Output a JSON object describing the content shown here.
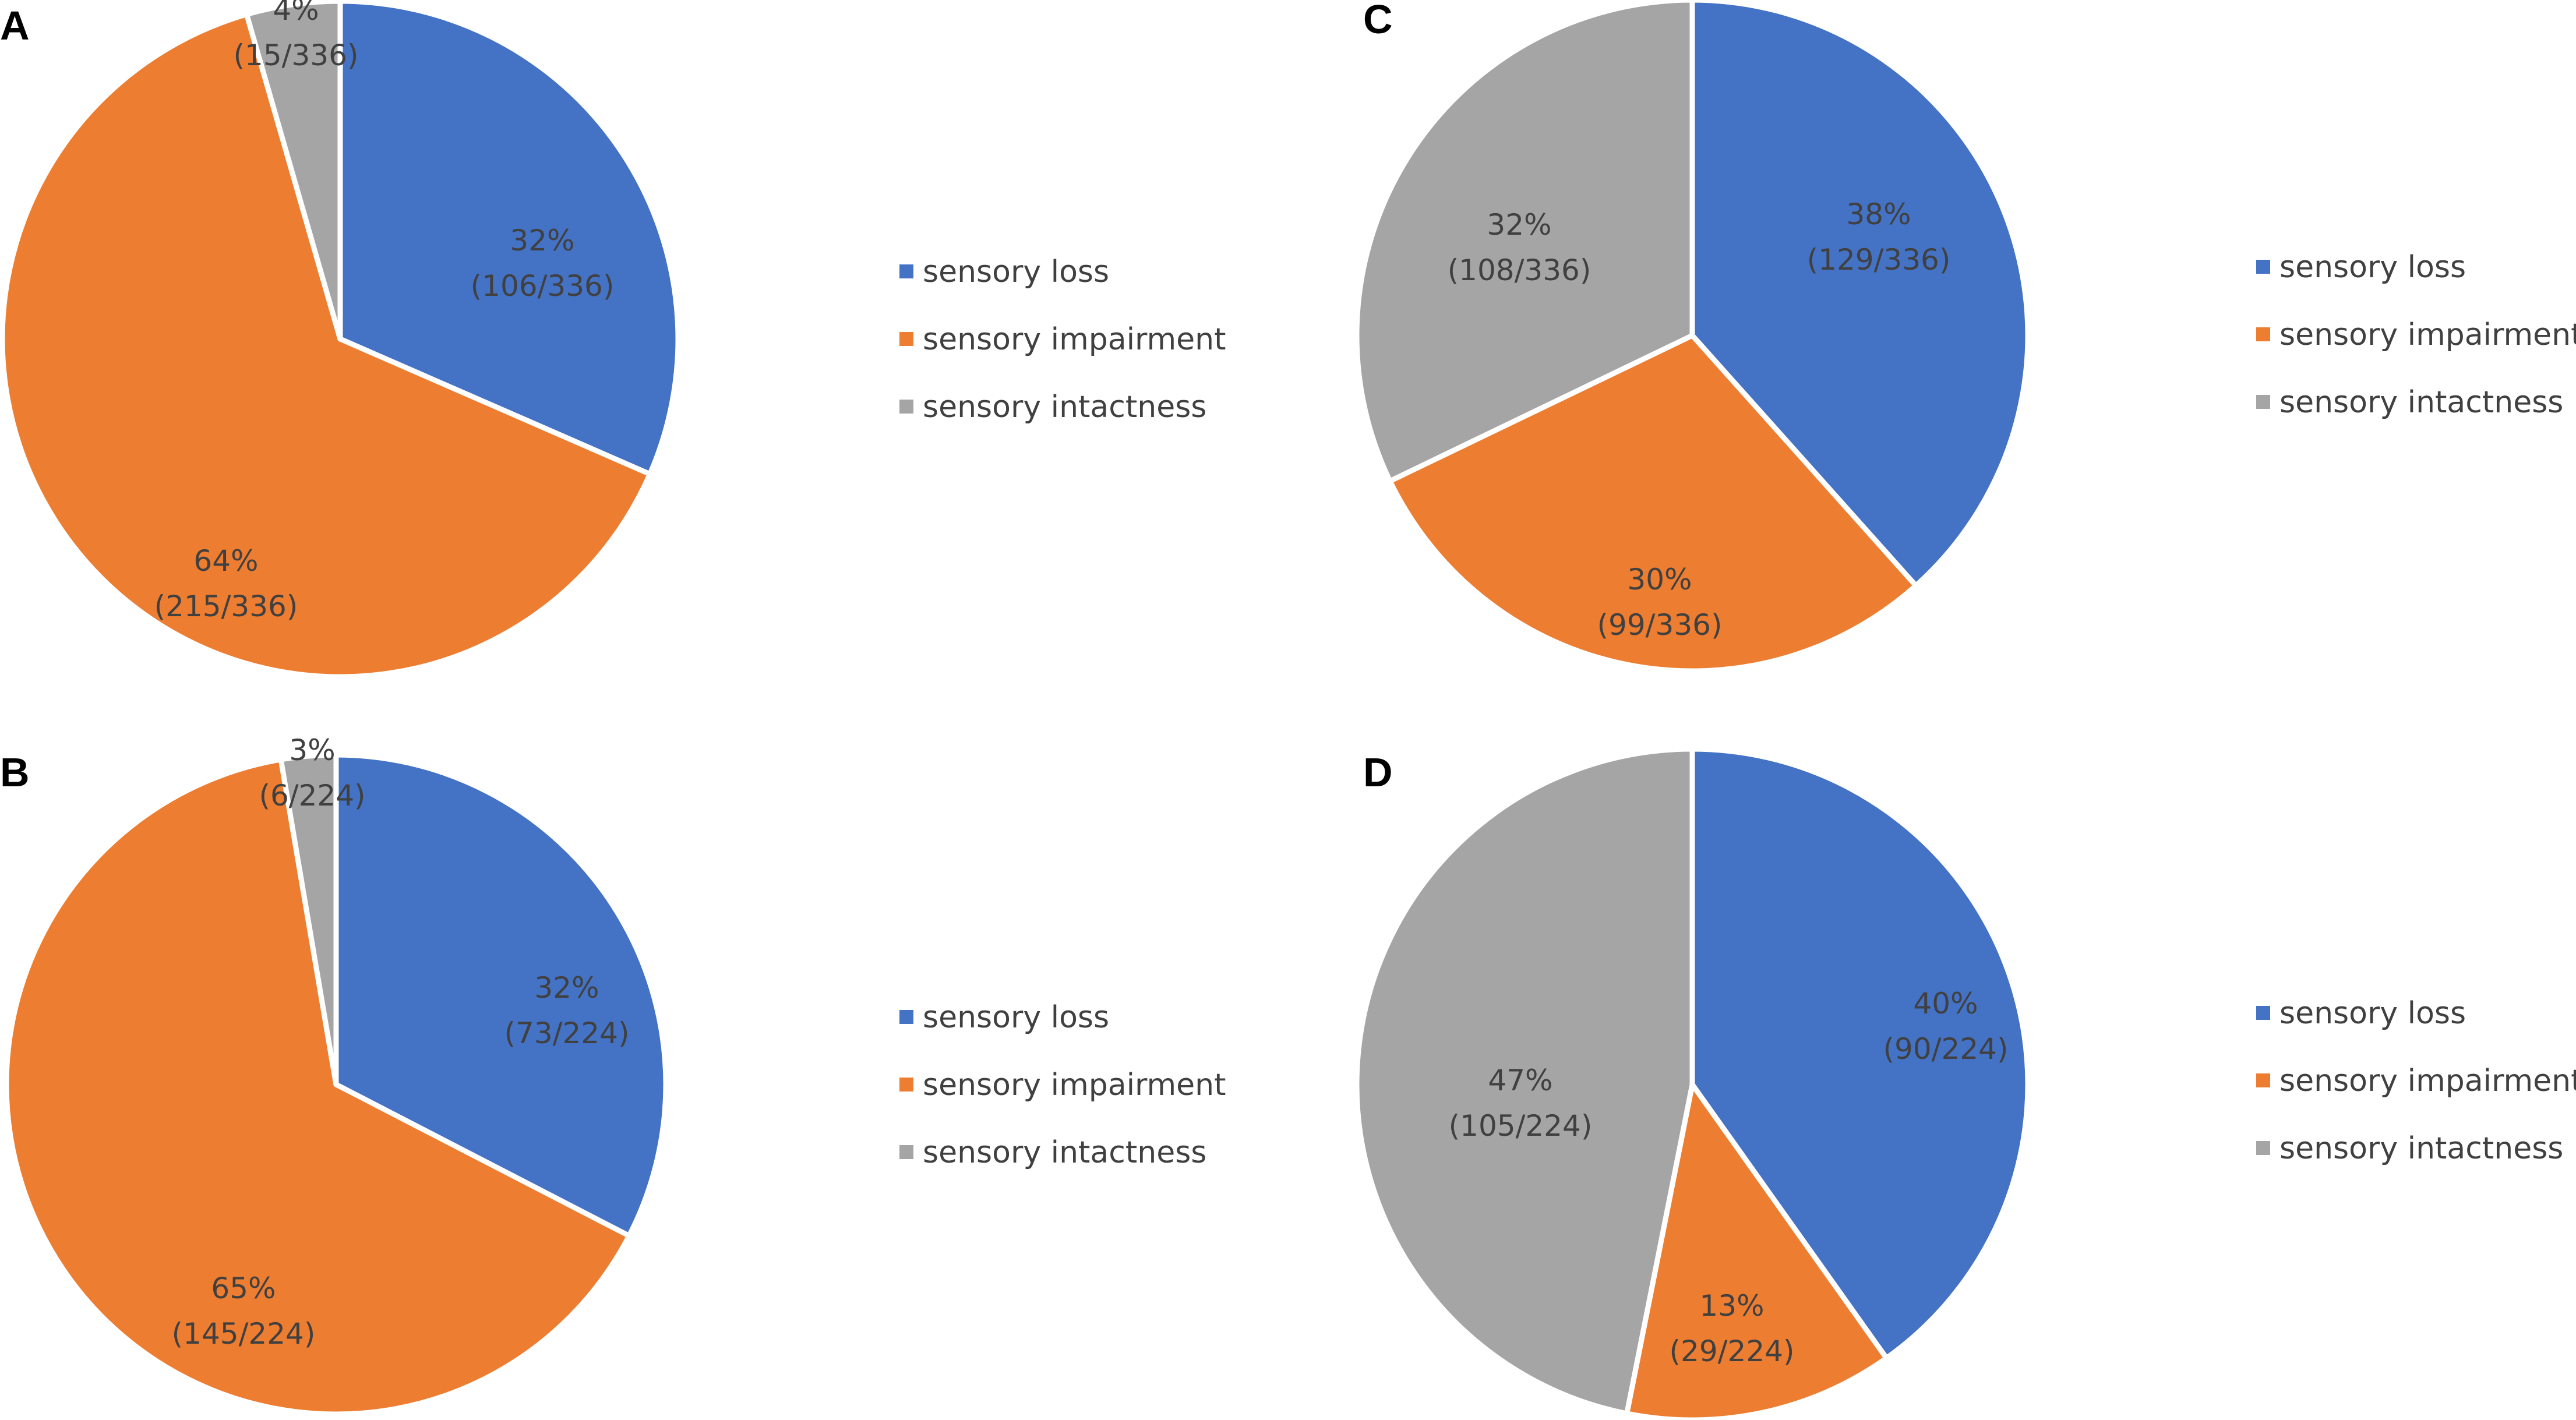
{
  "chart_data": [
    {
      "panel": "A",
      "type": "pie",
      "title": "",
      "total": 336,
      "slices": [
        {
          "category": "sensory loss",
          "percent": 32,
          "count_label": "(106/336)",
          "percent_label": "32%",
          "count": 106,
          "color": "#4472C4"
        },
        {
          "category": "sensory impairment",
          "percent": 64,
          "count_label": "(215/336)",
          "percent_label": "64%",
          "count": 215,
          "color": "#ED7D31"
        },
        {
          "category": "sensory intactness",
          "percent": 4,
          "count_label": "(15/336)",
          "percent_label": "4%",
          "count": 15,
          "color": "#A5A5A5"
        }
      ],
      "legend": [
        "sensory loss",
        "sensory impairment",
        "sensory intactness"
      ]
    },
    {
      "panel": "B",
      "type": "pie",
      "title": "",
      "total": 224,
      "slices": [
        {
          "category": "sensory loss",
          "percent": 32,
          "count_label": "(73/224)",
          "percent_label": "32%",
          "count": 73,
          "color": "#4472C4"
        },
        {
          "category": "sensory impairment",
          "percent": 65,
          "count_label": "(145/224)",
          "percent_label": "65%",
          "count": 145,
          "color": "#ED7D31"
        },
        {
          "category": "sensory intactness",
          "percent": 3,
          "count_label": "(6/224)",
          "percent_label": "3%",
          "count": 6,
          "color": "#A5A5A5"
        }
      ],
      "legend": [
        "sensory loss",
        "sensory impairment",
        "sensory intactness"
      ]
    },
    {
      "panel": "C",
      "type": "pie",
      "title": "",
      "total": 336,
      "slices": [
        {
          "category": "sensory loss",
          "percent": 38,
          "count_label": "(129/336)",
          "percent_label": "38%",
          "count": 129,
          "color": "#4472C4"
        },
        {
          "category": "sensory impairment",
          "percent": 30,
          "count_label": "(99/336)",
          "percent_label": "30%",
          "count": 99,
          "color": "#ED7D31"
        },
        {
          "category": "sensory intactness",
          "percent": 32,
          "count_label": "(108/336)",
          "percent_label": "32%",
          "count": 108,
          "color": "#A5A5A5"
        }
      ],
      "legend": [
        "sensory loss",
        "sensory impairment",
        "sensory intactness"
      ]
    },
    {
      "panel": "D",
      "type": "pie",
      "title": "",
      "total": 224,
      "slices": [
        {
          "category": "sensory loss",
          "percent": 40,
          "count_label": "(90/224)",
          "percent_label": "40%",
          "count": 90,
          "color": "#4472C4"
        },
        {
          "category": "sensory impairment",
          "percent": 13,
          "count_label": "(29/224)",
          "percent_label": "13%",
          "count": 29,
          "color": "#ED7D31"
        },
        {
          "category": "sensory intactness",
          "percent": 47,
          "count_label": "(105/224)",
          "percent_label": "47%",
          "count": 105,
          "color": "#A5A5A5"
        }
      ],
      "legend": [
        "sensory loss",
        "sensory impairment",
        "sensory intactness"
      ]
    }
  ],
  "colors": {
    "background": "#FFFFFF",
    "label_text": "#404040",
    "panel_letter": "#000000",
    "slice_border": "#FFFFFF"
  }
}
